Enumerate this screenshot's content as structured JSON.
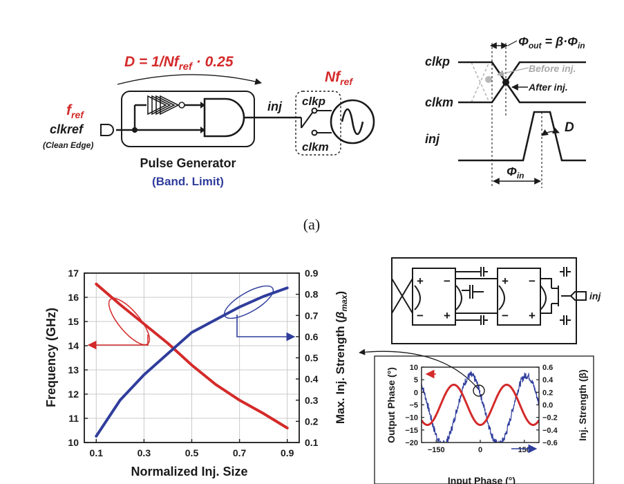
{
  "panel_a": {
    "formula": {
      "lead": "D = 1/Nf",
      "sub": "ref",
      "tail": " · 0.25"
    },
    "nf": {
      "main": "Nf",
      "sub": "ref"
    },
    "fref": {
      "main": "f",
      "sub": "ref"
    },
    "clkref": "clkref",
    "clean_edge": "(Clean Edge)",
    "pulse_gen": "Pulse Generator",
    "band_limit": "(Band. Limit)",
    "inj": "inj",
    "clkp": "clkp",
    "clkm": "clkm",
    "caption": "(a)",
    "timing": {
      "clkp": "clkp",
      "clkm": "clkm",
      "inj": "inj",
      "phi_out": {
        "phi": "Φ",
        "sub": "out",
        "eq": " = β·",
        "phi2": "Φ",
        "sub2": "in"
      },
      "before": "Before inj.",
      "after": "After inj.",
      "d": "D",
      "phi_in": {
        "phi": "Φ",
        "sub": "in"
      }
    }
  },
  "panel_b": {
    "inj": "inj",
    "plus": "+",
    "minus": "−"
  },
  "chart_data": [
    {
      "type": "line",
      "xlabel": "Normalized Inj. Size",
      "ylabel": "Frequency (GHz)",
      "y2label": {
        "main": "Max. Inj. Strength (",
        "sym": "β",
        "sub": "max",
        "end": ")"
      },
      "xlim": [
        0.05,
        0.95
      ],
      "ylim": [
        10,
        17
      ],
      "y2lim": [
        0.1,
        0.9
      ],
      "xticks": [
        "0.1",
        "0.3",
        "0.5",
        "0.7",
        "0.9"
      ],
      "xtick_values": [
        0.1,
        0.3,
        0.5,
        0.7,
        0.9
      ],
      "yticks": [
        "10",
        "11",
        "12",
        "13",
        "14",
        "15",
        "16",
        "17"
      ],
      "y2ticks": [
        "0.1",
        "0.2",
        "0.3",
        "0.4",
        "0.5",
        "0.6",
        "0.7",
        "0.8",
        "0.9"
      ],
      "grid": true,
      "series": [
        {
          "axis": "left",
          "color": "#d42a2a",
          "x": [
            0.1,
            0.2,
            0.3,
            0.4,
            0.5,
            0.6,
            0.7,
            0.8,
            0.9
          ],
          "y": [
            16.55,
            15.7,
            14.9,
            14.1,
            13.2,
            12.4,
            11.75,
            11.2,
            10.6
          ]
        },
        {
          "axis": "right",
          "color": "#2f3d9c",
          "x": [
            0.1,
            0.2,
            0.3,
            0.4,
            0.5,
            0.6,
            0.7,
            0.8,
            0.9
          ],
          "y": [
            0.13,
            0.3,
            0.42,
            0.52,
            0.62,
            0.68,
            0.74,
            0.79,
            0.83
          ]
        }
      ]
    },
    {
      "type": "line",
      "xlabel": "Input Phase (°)",
      "ylabel": "Output Phase (°)",
      "y2label": "Inj. Strength (β)",
      "xlim": [
        -200,
        200
      ],
      "ylim": [
        -20,
        10
      ],
      "y2lim": [
        -0.6,
        0.6
      ],
      "xticks": [
        "−150",
        "0",
        "150"
      ],
      "xtick_values": [
        -150,
        0,
        150
      ],
      "yticks": [
        "10",
        "5",
        "0",
        "−5",
        "−10",
        "−15",
        "−20"
      ],
      "ytick_values": [
        10,
        5,
        0,
        -5,
        -10,
        -15,
        -20
      ],
      "y2ticks": [
        "0.6",
        "0.4",
        "0.2",
        "0.0",
        "−0.2",
        "−0.4",
        "−0.6"
      ],
      "y2tick_values": [
        0.6,
        0.4,
        0.2,
        0.0,
        -0.2,
        -0.4,
        -0.6
      ],
      "series": [
        {
          "axis": "left",
          "color": "#d42a2a",
          "kind": "sine",
          "amplitude": 8,
          "offset": -5,
          "period": 180,
          "phase": 45
        },
        {
          "axis": "right",
          "color": "#2f3d9c",
          "kind": "noisy-sine",
          "amplitude": 0.55,
          "offset": -0.08,
          "period": 190,
          "phase": 110
        }
      ]
    }
  ]
}
